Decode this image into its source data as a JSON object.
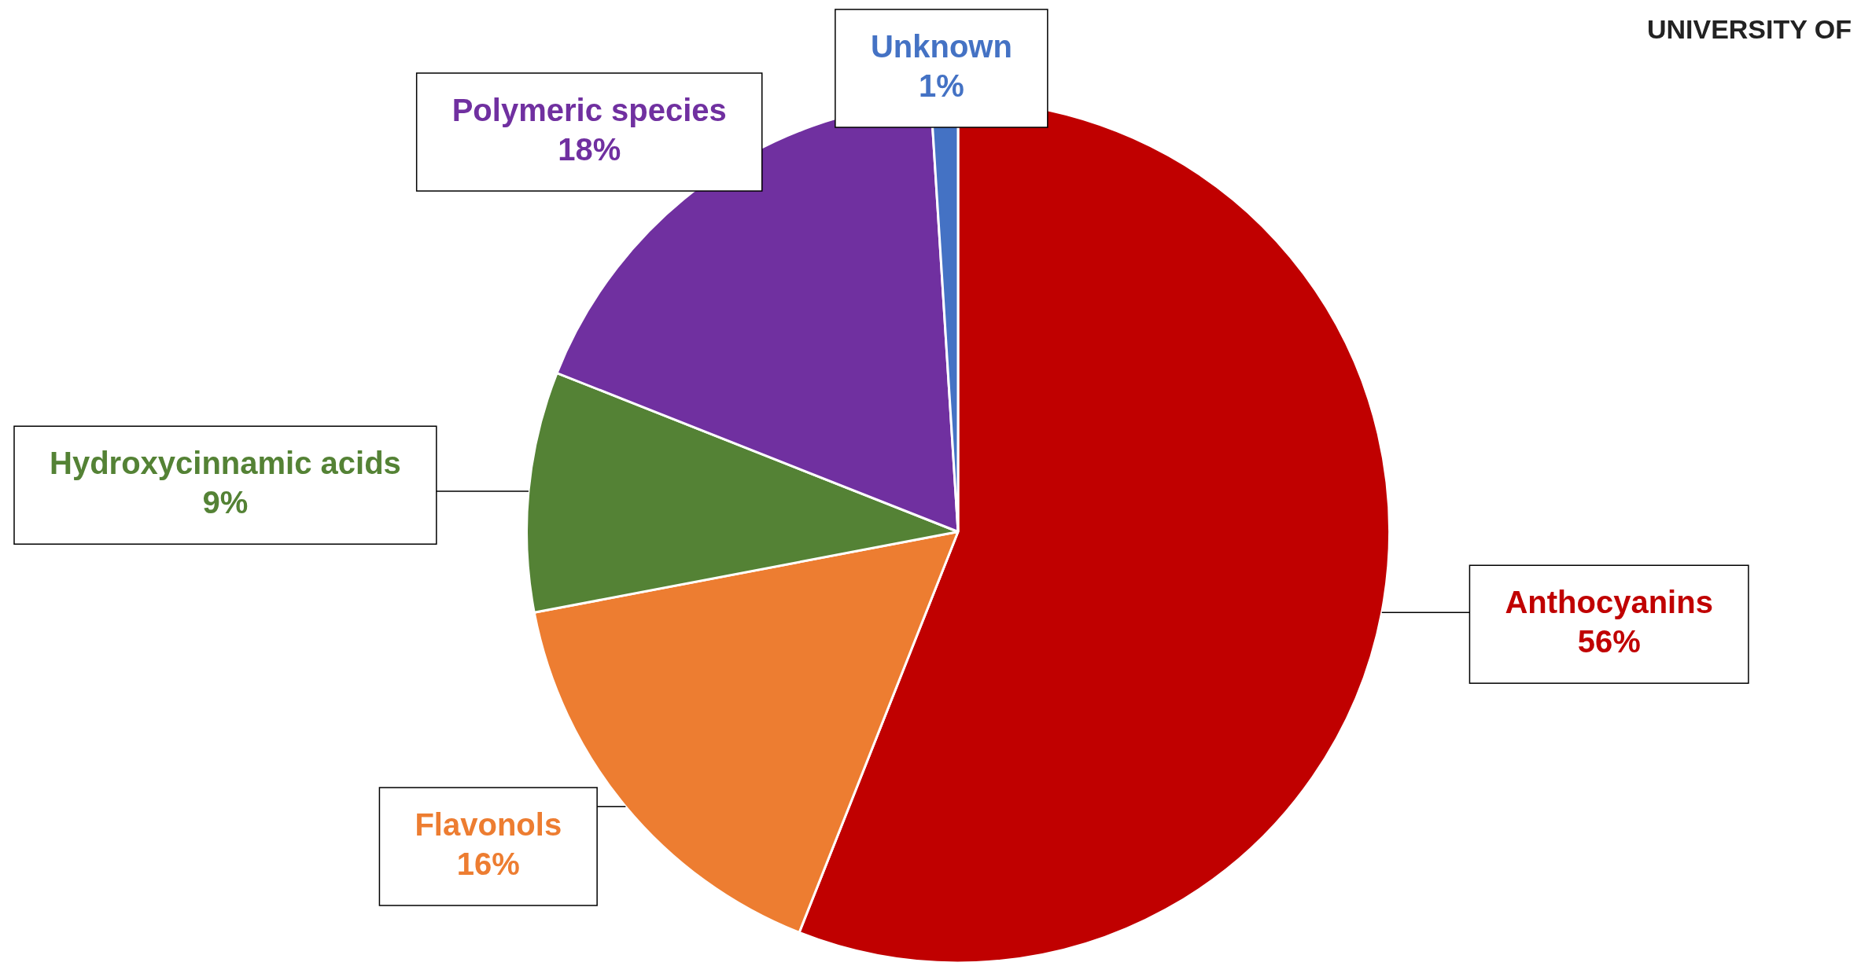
{
  "chart_data": {
    "type": "pie",
    "categories": [
      "Anthocyanins",
      "Flavonols",
      "Hydroxycinnamic acids",
      "Polymeric species",
      "Unknown"
    ],
    "values": [
      56,
      16,
      9,
      18,
      1
    ],
    "colors": [
      "#c00000",
      "#ed7d31",
      "#548235",
      "#7030a0",
      "#4472c4"
    ],
    "value_labels": [
      "56%",
      "16%",
      "9%",
      "18%",
      "1%"
    ],
    "legend": false,
    "annotations": [
      "UNIVERSITY OF"
    ]
  }
}
